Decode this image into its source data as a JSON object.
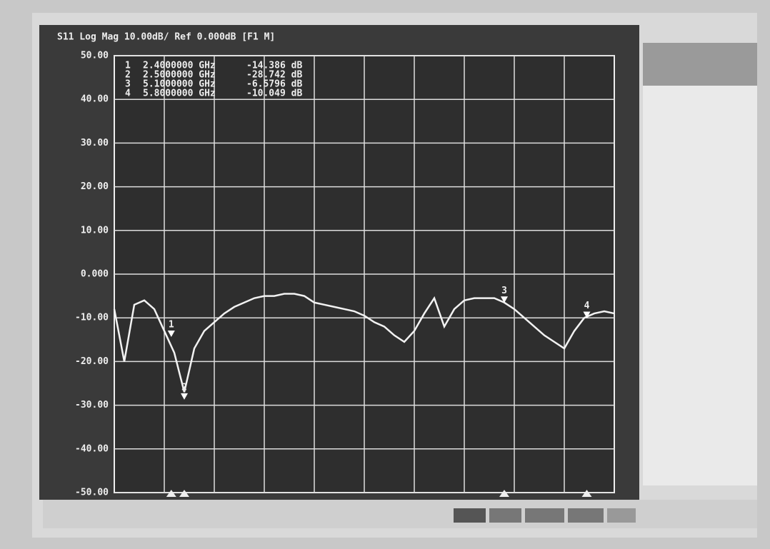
{
  "chart_data": {
    "type": "line",
    "title": "S11 Log Mag 10.00dB/ Ref 0.000dB [F1 M]",
    "values": [
      -8,
      -20,
      -7,
      -6,
      -8,
      -13,
      -18,
      -27,
      -17,
      -13,
      -11,
      -9,
      -7.5,
      -6.5,
      -5.5,
      -5,
      -5,
      -4.5,
      -4.5,
      -5,
      -6.5,
      -7,
      -7.5,
      -8,
      -8.5,
      -9.5,
      -11,
      -12,
      -14,
      -15.5,
      -13,
      -9,
      -5.5,
      -12,
      -8,
      -6,
      -5.5,
      -5.5,
      -5.5,
      -6.5,
      -8,
      -10,
      -12,
      -14,
      -15.5,
      -17,
      -13,
      -10,
      -9,
      -8.5,
      -9
    ],
    "color": "#f2f2f2",
    "ylim": [
      -50,
      50
    ],
    "yticks": [
      {
        "value": 50,
        "label": "50.00"
      },
      {
        "value": 40,
        "label": "40.00"
      },
      {
        "value": 30,
        "label": "30.00"
      },
      {
        "value": 20,
        "label": "20.00"
      },
      {
        "value": 10,
        "label": "10.00"
      },
      {
        "value": 0,
        "label": "0.000"
      },
      {
        "value": -10,
        "label": "-10.00"
      },
      {
        "value": -20,
        "label": "-20.00"
      },
      {
        "value": -30,
        "label": "-30.00"
      },
      {
        "value": -40,
        "label": "-40.00"
      },
      {
        "value": -50,
        "label": "-50.00"
      }
    ],
    "grid": true,
    "markers": [
      {
        "name": "1",
        "freq": "2.4000000 GHz",
        "value": -14.386,
        "value_label": "-14.386 dB"
      },
      {
        "name": "2",
        "freq": "2.5000000 GHz",
        "value": -28.742,
        "value_label": "-28.742 dB"
      },
      {
        "name": "3",
        "freq": "5.1000000 GHz",
        "value": -6.5796,
        "value_label": "-6.5796 dB"
      },
      {
        "name": "4",
        "freq": "5.8000000 GHz",
        "value": -10.049,
        "value_label": "-10.049 dB"
      }
    ]
  }
}
